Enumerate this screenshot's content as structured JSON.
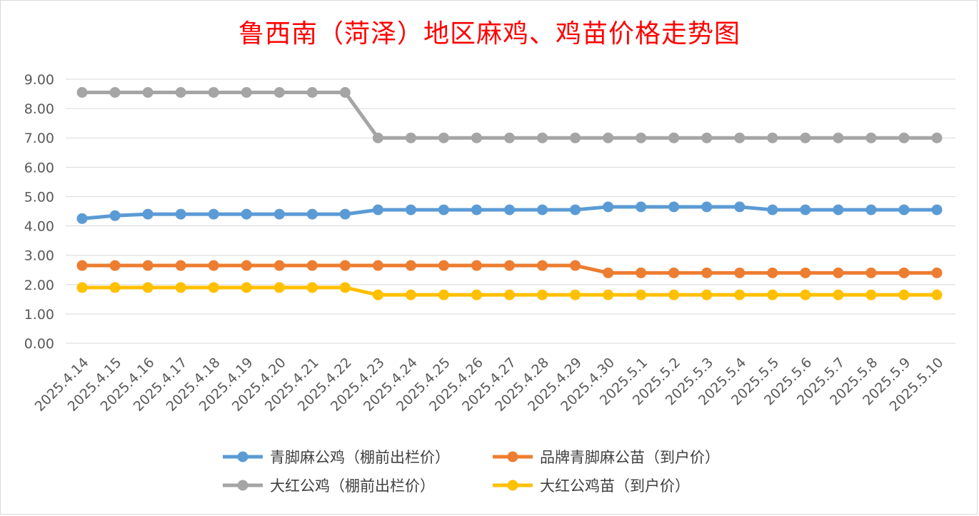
{
  "chart_data": {
    "type": "line",
    "title": "鲁西南（菏泽）地区麻鸡、鸡苗价格走势图",
    "xlabel": "",
    "ylabel": "",
    "ylim": [
      0,
      9
    ],
    "y_ticks": [
      "0.00",
      "1.00",
      "2.00",
      "3.00",
      "4.00",
      "5.00",
      "6.00",
      "7.00",
      "8.00",
      "9.00"
    ],
    "grid": true,
    "legend_position": "bottom",
    "categories": [
      "2025.4.14",
      "2025.4.15",
      "2025.4.16",
      "2025.4.17",
      "2025.4.18",
      "2025.4.19",
      "2025.4.20",
      "2025.4.21",
      "2025.4.22",
      "2025.4.23",
      "2025.4.24",
      "2025.4.25",
      "2025.4.26",
      "2025.4.27",
      "2025.4.28",
      "2025.4.29",
      "2025.4.30",
      "2025.5.1",
      "2025.5.2",
      "2025.5.3",
      "2025.5.4",
      "2025.5.5",
      "2025.5.6",
      "2025.5.7",
      "2025.5.8",
      "2025.5.9",
      "2025.5.10"
    ],
    "series": [
      {
        "name": "青脚麻公鸡（棚前出栏价）",
        "color": "#5b9bd5",
        "values": [
          4.25,
          4.35,
          4.4,
          4.4,
          4.4,
          4.4,
          4.4,
          4.4,
          4.4,
          4.55,
          4.55,
          4.55,
          4.55,
          4.55,
          4.55,
          4.55,
          4.65,
          4.65,
          4.65,
          4.65,
          4.65,
          4.55,
          4.55,
          4.55,
          4.55,
          4.55,
          4.55
        ]
      },
      {
        "name": "品牌青脚麻公苗（到户价）",
        "color": "#ed7d31",
        "values": [
          2.65,
          2.65,
          2.65,
          2.65,
          2.65,
          2.65,
          2.65,
          2.65,
          2.65,
          2.65,
          2.65,
          2.65,
          2.65,
          2.65,
          2.65,
          2.65,
          2.4,
          2.4,
          2.4,
          2.4,
          2.4,
          2.4,
          2.4,
          2.4,
          2.4,
          2.4,
          2.4
        ]
      },
      {
        "name": "大红公鸡（棚前出栏价）",
        "color": "#a5a5a5",
        "values": [
          8.55,
          8.55,
          8.55,
          8.55,
          8.55,
          8.55,
          8.55,
          8.55,
          8.55,
          7.0,
          7.0,
          7.0,
          7.0,
          7.0,
          7.0,
          7.0,
          7.0,
          7.0,
          7.0,
          7.0,
          7.0,
          7.0,
          7.0,
          7.0,
          7.0,
          7.0,
          7.0
        ]
      },
      {
        "name": "大红公鸡苗（到户价）",
        "color": "#ffc000",
        "values": [
          1.9,
          1.9,
          1.9,
          1.9,
          1.9,
          1.9,
          1.9,
          1.9,
          1.9,
          1.65,
          1.65,
          1.65,
          1.65,
          1.65,
          1.65,
          1.65,
          1.65,
          1.65,
          1.65,
          1.65,
          1.65,
          1.65,
          1.65,
          1.65,
          1.65,
          1.65,
          1.65
        ]
      }
    ]
  }
}
